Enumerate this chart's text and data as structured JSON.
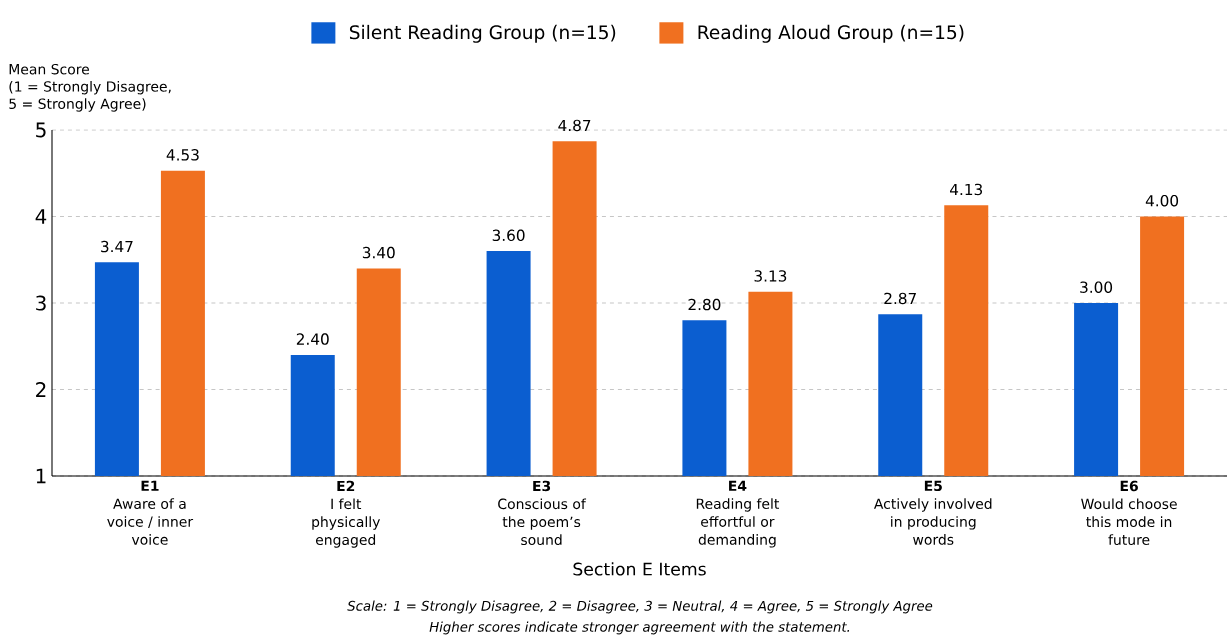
{
  "chart_data": {
    "type": "bar",
    "categories": [
      "**E1**\nAware of a\nvoice / inner\nvoice",
      "**E2**\nI felt\nphysically\nengaged",
      "**E3**\nConscious of\nthe poem’s\nsound",
      "**E4**\nReading felt\neffortful or\ndemanding",
      "**E5**\nActively involved\nin producing\nwords",
      "**E6**\nWould choose\nthis mode in\nfuture"
    ],
    "series": [
      {
        "name": "Silent Reading Group (n=15)",
        "color": "#0b5ed0",
        "values": [
          3.47,
          2.4,
          3.6,
          2.8,
          2.87,
          3.0
        ],
        "value_labels": [
          "3.47",
          "2.40",
          "3.60",
          "2.80",
          "2.87",
          "3.00"
        ]
      },
      {
        "name": "Reading Aloud Group (n=15)",
        "color": "#f07020",
        "values": [
          4.53,
          3.4,
          4.87,
          3.13,
          4.13,
          4.0
        ],
        "value_labels": [
          "4.53",
          "3.40",
          "4.87",
          "3.13",
          "4.13",
          "4.00"
        ]
      }
    ],
    "xlabel": "Section E Items",
    "ylabel": "Mean Score\n(1 = Strongly Disagree,\n5 = Strongly Agree)",
    "ylim": [
      1,
      5
    ],
    "yticks": [
      1,
      2,
      3,
      4,
      5
    ],
    "grid": "y",
    "legend": "top",
    "annotations": [
      "Scale: 1 = Strongly Disagree, 2 = Disagree, 3 = Neutral, 4 = Agree, 5 = Strongly Agree",
      "Higher scores indicate stronger agreement with the statement."
    ]
  }
}
